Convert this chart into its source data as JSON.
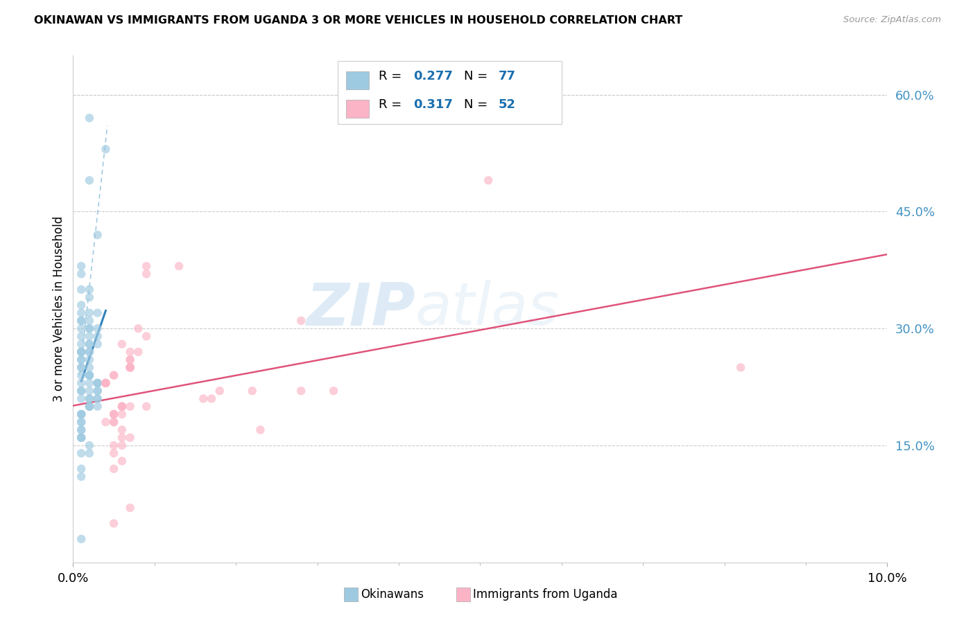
{
  "title": "OKINAWAN VS IMMIGRANTS FROM UGANDA 3 OR MORE VEHICLES IN HOUSEHOLD CORRELATION CHART",
  "source": "Source: ZipAtlas.com",
  "ylabel": "3 or more Vehicles in Household",
  "xlim": [
    0.0,
    0.1
  ],
  "ylim": [
    0.0,
    0.65
  ],
  "ytick_values": [
    0.15,
    0.3,
    0.45,
    0.6
  ],
  "ytick_labels": [
    "15.0%",
    "30.0%",
    "45.0%",
    "60.0%"
  ],
  "xtick_values": [
    0.0,
    0.1
  ],
  "xtick_labels": [
    "0.0%",
    "10.0%"
  ],
  "watermark_zip": "ZIP",
  "watermark_atlas": "atlas",
  "legend1_r": "0.277",
  "legend1_n": "77",
  "legend2_r": "0.317",
  "legend2_n": "52",
  "blue_scatter_color": "#9ecae1",
  "pink_scatter_color": "#fbb4c6",
  "blue_line_color": "#3182bd",
  "pink_line_color": "#e0537a",
  "dash_line_color": "#9ecae1",
  "grid_color": "#cccccc",
  "right_tick_color": "#4393c3",
  "legend_value_color": "#1a6faf",
  "okinawan_x": [
    0.002,
    0.004,
    0.002,
    0.003,
    0.001,
    0.001,
    0.001,
    0.002,
    0.002,
    0.001,
    0.001,
    0.002,
    0.003,
    0.001,
    0.001,
    0.002,
    0.002,
    0.001,
    0.002,
    0.003,
    0.003,
    0.002,
    0.001,
    0.002,
    0.003,
    0.002,
    0.001,
    0.001,
    0.002,
    0.001,
    0.001,
    0.002,
    0.001,
    0.002,
    0.001,
    0.002,
    0.001,
    0.001,
    0.001,
    0.002,
    0.002,
    0.002,
    0.001,
    0.002,
    0.003,
    0.003,
    0.003,
    0.003,
    0.002,
    0.001,
    0.001,
    0.003,
    0.003,
    0.002,
    0.002,
    0.001,
    0.003,
    0.003,
    0.002,
    0.002,
    0.002,
    0.001,
    0.001,
    0.001,
    0.001,
    0.001,
    0.001,
    0.001,
    0.001,
    0.001,
    0.001,
    0.002,
    0.001,
    0.002,
    0.001,
    0.001,
    0.001
  ],
  "okinawan_y": [
    0.57,
    0.53,
    0.49,
    0.42,
    0.38,
    0.37,
    0.35,
    0.35,
    0.34,
    0.33,
    0.32,
    0.32,
    0.32,
    0.31,
    0.31,
    0.31,
    0.3,
    0.3,
    0.3,
    0.3,
    0.29,
    0.29,
    0.29,
    0.28,
    0.28,
    0.28,
    0.28,
    0.27,
    0.27,
    0.27,
    0.27,
    0.27,
    0.26,
    0.26,
    0.26,
    0.25,
    0.25,
    0.25,
    0.24,
    0.24,
    0.24,
    0.24,
    0.23,
    0.23,
    0.23,
    0.23,
    0.23,
    0.22,
    0.22,
    0.22,
    0.22,
    0.22,
    0.21,
    0.21,
    0.21,
    0.21,
    0.21,
    0.2,
    0.2,
    0.2,
    0.2,
    0.19,
    0.19,
    0.19,
    0.18,
    0.18,
    0.17,
    0.17,
    0.16,
    0.16,
    0.16,
    0.15,
    0.14,
    0.14,
    0.12,
    0.11,
    0.03
  ],
  "uganda_x": [
    0.051,
    0.013,
    0.009,
    0.009,
    0.028,
    0.008,
    0.009,
    0.006,
    0.007,
    0.008,
    0.007,
    0.007,
    0.007,
    0.007,
    0.007,
    0.007,
    0.005,
    0.005,
    0.004,
    0.004,
    0.004,
    0.004,
    0.018,
    0.022,
    0.032,
    0.028,
    0.016,
    0.017,
    0.009,
    0.007,
    0.006,
    0.006,
    0.006,
    0.006,
    0.005,
    0.005,
    0.005,
    0.005,
    0.004,
    0.005,
    0.023,
    0.006,
    0.007,
    0.006,
    0.005,
    0.006,
    0.005,
    0.082,
    0.006,
    0.005,
    0.007,
    0.005
  ],
  "uganda_y": [
    0.49,
    0.38,
    0.37,
    0.38,
    0.31,
    0.3,
    0.29,
    0.28,
    0.27,
    0.27,
    0.26,
    0.26,
    0.25,
    0.25,
    0.25,
    0.25,
    0.24,
    0.24,
    0.23,
    0.23,
    0.23,
    0.23,
    0.22,
    0.22,
    0.22,
    0.22,
    0.21,
    0.21,
    0.2,
    0.2,
    0.2,
    0.2,
    0.2,
    0.19,
    0.19,
    0.19,
    0.19,
    0.18,
    0.18,
    0.18,
    0.17,
    0.17,
    0.16,
    0.16,
    0.15,
    0.15,
    0.14,
    0.25,
    0.13,
    0.12,
    0.07,
    0.05
  ]
}
